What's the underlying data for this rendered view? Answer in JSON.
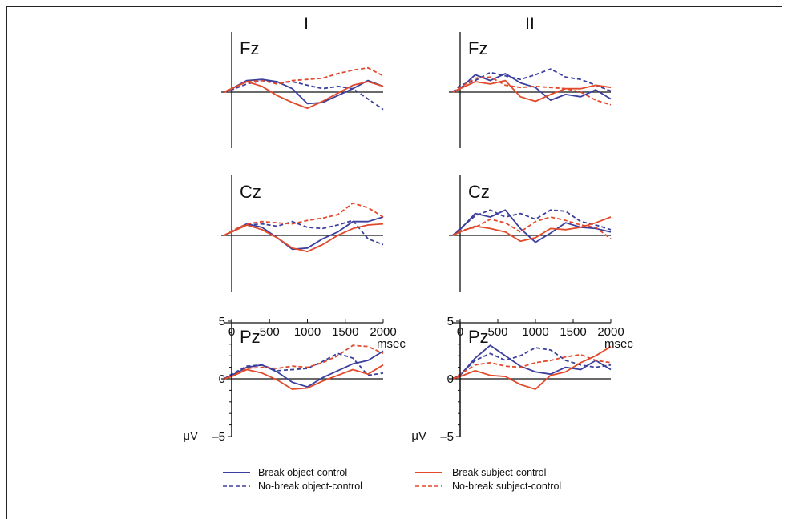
{
  "columns": [
    "I",
    "II"
  ],
  "axes": {
    "x_ticks": [
      "0",
      "500",
      "1000",
      "1500",
      "2000"
    ],
    "x_unit": "msec",
    "y_unit": "μV",
    "y_ticks": [
      "–5",
      "0",
      "5"
    ],
    "x_range_ms": [
      -100,
      2000
    ],
    "y_range_uV": [
      -5,
      5
    ],
    "y_inverted": true
  },
  "legend": {
    "break_object": "Break object-control",
    "nobreak_object": "No-break object-control",
    "break_subject": "Break subject-control",
    "nobreak_subject": "No-break subject-control"
  },
  "colors": {
    "object": "#3b3f9e",
    "subject": "#e24a2b",
    "axis": "#111111"
  },
  "chart_data": [
    {
      "type": "line",
      "column": "I",
      "electrode": "Fz",
      "x": [
        -100,
        0,
        200,
        400,
        600,
        800,
        1000,
        1200,
        1400,
        1600,
        1800,
        2000
      ],
      "series": [
        {
          "name": "Break object-control",
          "values": [
            0,
            0.3,
            1.0,
            1.1,
            0.9,
            0.3,
            -1.0,
            -0.9,
            -0.3,
            0.3,
            1.0,
            0.5
          ]
        },
        {
          "name": "No-break object-control",
          "values": [
            0,
            0.2,
            0.7,
            1.0,
            0.8,
            0.9,
            0.6,
            0.3,
            0.5,
            0.3,
            -0.6,
            -1.5
          ]
        },
        {
          "name": "Break subject-control",
          "values": [
            0,
            0.3,
            0.9,
            0.5,
            -0.3,
            -0.9,
            -1.4,
            -0.8,
            -0.1,
            0.6,
            0.9,
            0.5
          ]
        },
        {
          "name": "No-break subject-control",
          "values": [
            0,
            0.3,
            0.9,
            1.0,
            0.7,
            1.0,
            1.1,
            1.2,
            1.6,
            1.9,
            2.1,
            1.4
          ]
        }
      ]
    },
    {
      "type": "line",
      "column": "II",
      "electrode": "Fz",
      "x": [
        -100,
        0,
        200,
        400,
        600,
        800,
        1000,
        1200,
        1400,
        1600,
        1800,
        2000
      ],
      "series": [
        {
          "name": "Break object-control",
          "values": [
            0,
            0.3,
            1.5,
            1.0,
            1.6,
            0.8,
            0.4,
            -0.7,
            -0.2,
            -0.4,
            0.2,
            -0.6
          ]
        },
        {
          "name": "No-break object-control",
          "values": [
            0,
            0.6,
            1.0,
            1.7,
            1.4,
            1.1,
            1.5,
            2.0,
            1.3,
            1.1,
            0.6,
            0.1
          ]
        },
        {
          "name": "Break subject-control",
          "values": [
            0,
            0.3,
            0.9,
            0.7,
            1.0,
            -0.4,
            -0.8,
            -0.2,
            0.3,
            0.3,
            0.6,
            0.4
          ]
        },
        {
          "name": "No-break subject-control",
          "values": [
            0,
            0.4,
            1.2,
            1.3,
            0.6,
            0.4,
            0.5,
            0.4,
            0.3,
            0.0,
            -0.7,
            -1.1
          ]
        }
      ]
    },
    {
      "type": "line",
      "column": "I",
      "electrode": "Cz",
      "x": [
        -100,
        0,
        200,
        400,
        600,
        800,
        1000,
        1200,
        1400,
        1600,
        1800,
        2000
      ],
      "series": [
        {
          "name": "Break object-control",
          "values": [
            0,
            0.3,
            1.0,
            0.7,
            -0.2,
            -1.2,
            -1.1,
            -0.3,
            0.3,
            1.2,
            1.2,
            1.6
          ]
        },
        {
          "name": "No-break object-control",
          "values": [
            0,
            0.3,
            0.9,
            1.0,
            0.8,
            1.2,
            0.7,
            0.6,
            0.9,
            1.3,
            -0.3,
            -0.8
          ]
        },
        {
          "name": "Break subject-control",
          "values": [
            0,
            0.3,
            0.9,
            0.5,
            -0.2,
            -1.1,
            -1.4,
            -0.8,
            0.0,
            0.6,
            0.9,
            1.0
          ]
        },
        {
          "name": "No-break subject-control",
          "values": [
            0,
            0.4,
            1.0,
            1.2,
            1.1,
            1.0,
            1.3,
            1.5,
            1.8,
            2.8,
            2.4,
            1.6
          ]
        }
      ]
    },
    {
      "type": "line",
      "column": "II",
      "electrode": "Cz",
      "x": [
        -100,
        0,
        200,
        400,
        600,
        800,
        1000,
        1200,
        1400,
        1600,
        1800,
        2000
      ],
      "series": [
        {
          "name": "Break object-control",
          "values": [
            0,
            0.5,
            1.9,
            1.6,
            2.2,
            0.6,
            -0.6,
            0.2,
            1.1,
            0.7,
            0.6,
            0.3
          ]
        },
        {
          "name": "No-break object-control",
          "values": [
            0,
            0.6,
            1.7,
            2.2,
            1.6,
            1.9,
            1.4,
            2.2,
            2.1,
            1.2,
            0.9,
            0.5
          ]
        },
        {
          "name": "Break subject-control",
          "values": [
            0,
            0.3,
            0.8,
            0.6,
            0.3,
            -0.5,
            -0.2,
            0.6,
            0.5,
            0.7,
            1.1,
            1.6
          ]
        },
        {
          "name": "No-break subject-control",
          "values": [
            0,
            0.4,
            0.7,
            1.4,
            1.1,
            0.3,
            1.2,
            1.6,
            1.3,
            0.9,
            0.7,
            -0.3
          ]
        }
      ]
    },
    {
      "type": "line",
      "column": "I",
      "electrode": "Pz",
      "x": [
        -100,
        0,
        200,
        400,
        600,
        800,
        1000,
        1200,
        1400,
        1600,
        1800,
        2000
      ],
      "series": [
        {
          "name": "Break object-control",
          "values": [
            0,
            0.3,
            1.0,
            1.2,
            0.6,
            -0.3,
            -0.7,
            0.1,
            0.7,
            1.3,
            1.6,
            2.4
          ]
        },
        {
          "name": "No-break object-control",
          "values": [
            0,
            0.4,
            1.1,
            1.2,
            0.7,
            0.8,
            0.9,
            1.5,
            2.2,
            1.8,
            0.3,
            0.5
          ]
        },
        {
          "name": "Break subject-control",
          "values": [
            0,
            0.2,
            0.8,
            0.5,
            -0.1,
            -0.9,
            -0.8,
            -0.2,
            0.3,
            0.8,
            0.4,
            1.2
          ]
        },
        {
          "name": "No-break subject-control",
          "values": [
            0,
            0.2,
            0.9,
            1.0,
            0.9,
            1.1,
            1.0,
            1.4,
            2.0,
            2.9,
            2.8,
            2.2
          ]
        }
      ]
    },
    {
      "type": "line",
      "column": "II",
      "electrode": "Pz",
      "x": [
        -100,
        0,
        200,
        400,
        600,
        800,
        1000,
        1200,
        1400,
        1600,
        1800,
        2000
      ],
      "series": [
        {
          "name": "Break object-control",
          "values": [
            0,
            0.3,
            1.8,
            2.9,
            2.0,
            1.1,
            0.6,
            0.4,
            1.0,
            0.8,
            1.6,
            0.8
          ]
        },
        {
          "name": "No-break object-control",
          "values": [
            0,
            0.4,
            1.6,
            2.2,
            1.6,
            2.0,
            2.7,
            2.5,
            1.6,
            1.2,
            1.0,
            1.2
          ]
        },
        {
          "name": "Break subject-control",
          "values": [
            0,
            0.2,
            0.7,
            0.3,
            0.2,
            -0.5,
            -0.9,
            0.3,
            0.6,
            1.4,
            2.0,
            2.8
          ]
        },
        {
          "name": "No-break subject-control",
          "values": [
            0,
            0.4,
            1.2,
            1.4,
            1.1,
            1.0,
            1.4,
            1.6,
            1.9,
            2.1,
            1.6,
            1.4
          ]
        }
      ]
    }
  ]
}
